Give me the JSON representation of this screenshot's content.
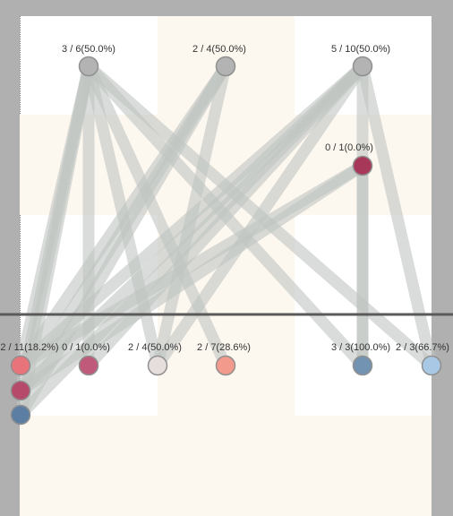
{
  "chart_data": {
    "type": "network",
    "top_nodes": [
      {
        "id": "t1",
        "label": "3 / 6(50.0%)",
        "color": "#b3b3b3"
      },
      {
        "id": "t2",
        "label": "2 / 4(50.0%)",
        "color": "#b3b3b3"
      },
      {
        "id": "t3",
        "label": "5 / 10(50.0%)",
        "color": "#b3b3b3"
      },
      {
        "id": "t4",
        "label": "0 / 1(0.0%)",
        "color": "#a8385a"
      }
    ],
    "bottom_nodes": [
      {
        "id": "b1",
        "label": "2 / 11(18.2%)",
        "color": "#e8737a"
      },
      {
        "id": "b1b",
        "label": "",
        "color": "#b54a6a"
      },
      {
        "id": "b1c",
        "label": "",
        "color": "#5d7ea3"
      },
      {
        "id": "b2",
        "label": "0 / 1(0.0%)",
        "color": "#c05a7a"
      },
      {
        "id": "b3",
        "label": "2 / 4(50.0%)",
        "color": "#e6dedd"
      },
      {
        "id": "b4",
        "label": "2 / 7(28.6%)",
        "color": "#f29a8c"
      },
      {
        "id": "b5",
        "label": "3 / 3(100.0%)",
        "color": "#7393b3"
      },
      {
        "id": "b6",
        "label": "2 / 3(66.7%)",
        "color": "#a8c8e6"
      }
    ],
    "links": [
      [
        "t1",
        "b1"
      ],
      [
        "t1",
        "b1b"
      ],
      [
        "t1",
        "b1c"
      ],
      [
        "t1",
        "b3"
      ],
      [
        "t1",
        "b4"
      ],
      [
        "t1",
        "b5"
      ],
      [
        "t1",
        "b6"
      ],
      [
        "t1",
        "b2"
      ],
      [
        "t2",
        "b1"
      ],
      [
        "t2",
        "b1b"
      ],
      [
        "t2",
        "b3"
      ],
      [
        "t2",
        "b1c"
      ],
      [
        "t3",
        "b1"
      ],
      [
        "t3",
        "b1b"
      ],
      [
        "t3",
        "b1c"
      ],
      [
        "t3",
        "b3"
      ],
      [
        "t3",
        "b5"
      ],
      [
        "t3",
        "b6"
      ],
      [
        "t3",
        "b2"
      ],
      [
        "t4",
        "b1"
      ],
      [
        "t4",
        "b1b"
      ],
      [
        "t4",
        "b5"
      ]
    ]
  }
}
